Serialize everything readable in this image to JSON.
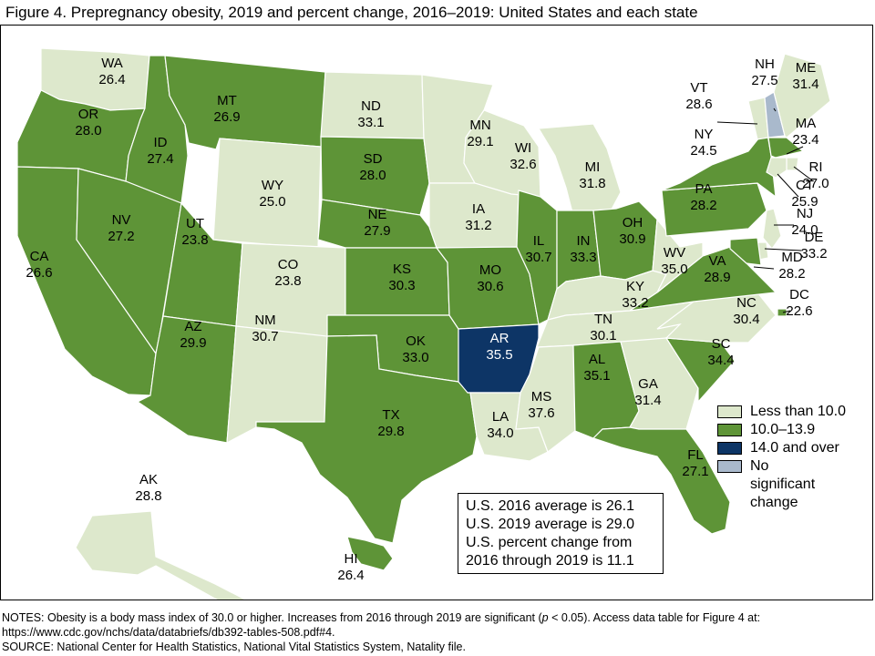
{
  "title": "Figure 4. Prepregnancy obesity, 2019 and percent change, 2016–2019: United States and each state",
  "legend": [
    {
      "label": "Less than 10.0",
      "color": "#dde8cc"
    },
    {
      "label": "10.0–13.9",
      "color": "#5e9437"
    },
    {
      "label": "14.0 and over",
      "color": "#0d3566"
    },
    {
      "label": "No significant change",
      "color": "#a9b9cc"
    }
  ],
  "info_box": {
    "line1": "U.S. 2016 average is 26.1",
    "line2": "U.S. 2019 average is 29.0",
    "line3": "U.S. percent change from",
    "line4": "2016 through 2019 is 11.1"
  },
  "notes": {
    "prefix": "NOTES: Obesity is a body mass index of 30.0 or higher. Increases from 2016 through 2019 are significant (",
    "p_symbol": "p",
    "suffix": " < 0.05). Access data table for Figure 4 at:",
    "url_line": "https://www.cdc.gov/nchs/data/databriefs/db392-tables-508.pdf#4.",
    "source": "SOURCE: National Center for Health Statistics, National Vital Statistics System, Natality file."
  },
  "states": [
    {
      "abbr": "WA",
      "value": "26.4",
      "category": "low"
    },
    {
      "abbr": "OR",
      "value": "28.0",
      "category": "mid"
    },
    {
      "abbr": "CA",
      "value": "26.6",
      "category": "mid"
    },
    {
      "abbr": "ID",
      "value": "27.4",
      "category": "mid"
    },
    {
      "abbr": "NV",
      "value": "27.2",
      "category": "mid"
    },
    {
      "abbr": "MT",
      "value": "26.9",
      "category": "mid"
    },
    {
      "abbr": "WY",
      "value": "25.0",
      "category": "low"
    },
    {
      "abbr": "UT",
      "value": "23.8",
      "category": "mid"
    },
    {
      "abbr": "AZ",
      "value": "29.9",
      "category": "mid"
    },
    {
      "abbr": "CO",
      "value": "23.8",
      "category": "low"
    },
    {
      "abbr": "NM",
      "value": "30.7",
      "category": "low"
    },
    {
      "abbr": "ND",
      "value": "33.1",
      "category": "low"
    },
    {
      "abbr": "SD",
      "value": "28.0",
      "category": "mid"
    },
    {
      "abbr": "NE",
      "value": "27.9",
      "category": "mid"
    },
    {
      "abbr": "KS",
      "value": "30.3",
      "category": "mid"
    },
    {
      "abbr": "OK",
      "value": "33.0",
      "category": "mid"
    },
    {
      "abbr": "TX",
      "value": "29.8",
      "category": "mid"
    },
    {
      "abbr": "MN",
      "value": "29.1",
      "category": "low"
    },
    {
      "abbr": "IA",
      "value": "31.2",
      "category": "low"
    },
    {
      "abbr": "MO",
      "value": "30.6",
      "category": "mid"
    },
    {
      "abbr": "AR",
      "value": "35.5",
      "category": "high"
    },
    {
      "abbr": "LA",
      "value": "34.0",
      "category": "low"
    },
    {
      "abbr": "WI",
      "value": "32.6",
      "category": "low"
    },
    {
      "abbr": "IL",
      "value": "30.7",
      "category": "mid"
    },
    {
      "abbr": "MI",
      "value": "31.8",
      "category": "low"
    },
    {
      "abbr": "IN",
      "value": "33.3",
      "category": "mid"
    },
    {
      "abbr": "OH",
      "value": "30.9",
      "category": "mid"
    },
    {
      "abbr": "KY",
      "value": "33.2",
      "category": "low"
    },
    {
      "abbr": "TN",
      "value": "30.1",
      "category": "low"
    },
    {
      "abbr": "MS",
      "value": "37.6",
      "category": "low"
    },
    {
      "abbr": "AL",
      "value": "35.1",
      "category": "mid"
    },
    {
      "abbr": "GA",
      "value": "31.4",
      "category": "low"
    },
    {
      "abbr": "FL",
      "value": "27.1",
      "category": "mid"
    },
    {
      "abbr": "SC",
      "value": "34.4",
      "category": "mid"
    },
    {
      "abbr": "NC",
      "value": "30.4",
      "category": "low"
    },
    {
      "abbr": "VA",
      "value": "28.9",
      "category": "mid"
    },
    {
      "abbr": "WV",
      "value": "35.0",
      "category": "low"
    },
    {
      "abbr": "PA",
      "value": "28.2",
      "category": "mid"
    },
    {
      "abbr": "NY",
      "value": "24.5",
      "category": "mid"
    },
    {
      "abbr": "VT",
      "value": "28.6",
      "category": "low"
    },
    {
      "abbr": "NH",
      "value": "27.5",
      "category": "none"
    },
    {
      "abbr": "ME",
      "value": "31.4",
      "category": "low"
    },
    {
      "abbr": "MA",
      "value": "23.4",
      "category": "mid"
    },
    {
      "abbr": "RI",
      "value": "27.0",
      "category": "low"
    },
    {
      "abbr": "CT",
      "value": "25.9",
      "category": "low"
    },
    {
      "abbr": "NJ",
      "value": "24.0",
      "category": "low"
    },
    {
      "abbr": "DE",
      "value": "33.2",
      "category": "low"
    },
    {
      "abbr": "MD",
      "value": "28.2",
      "category": "mid"
    },
    {
      "abbr": "DC",
      "value": "22.6",
      "category": "mid"
    },
    {
      "abbr": "AK",
      "value": "28.8",
      "category": "low"
    },
    {
      "abbr": "HI",
      "value": "26.4",
      "category": "mid"
    }
  ]
}
